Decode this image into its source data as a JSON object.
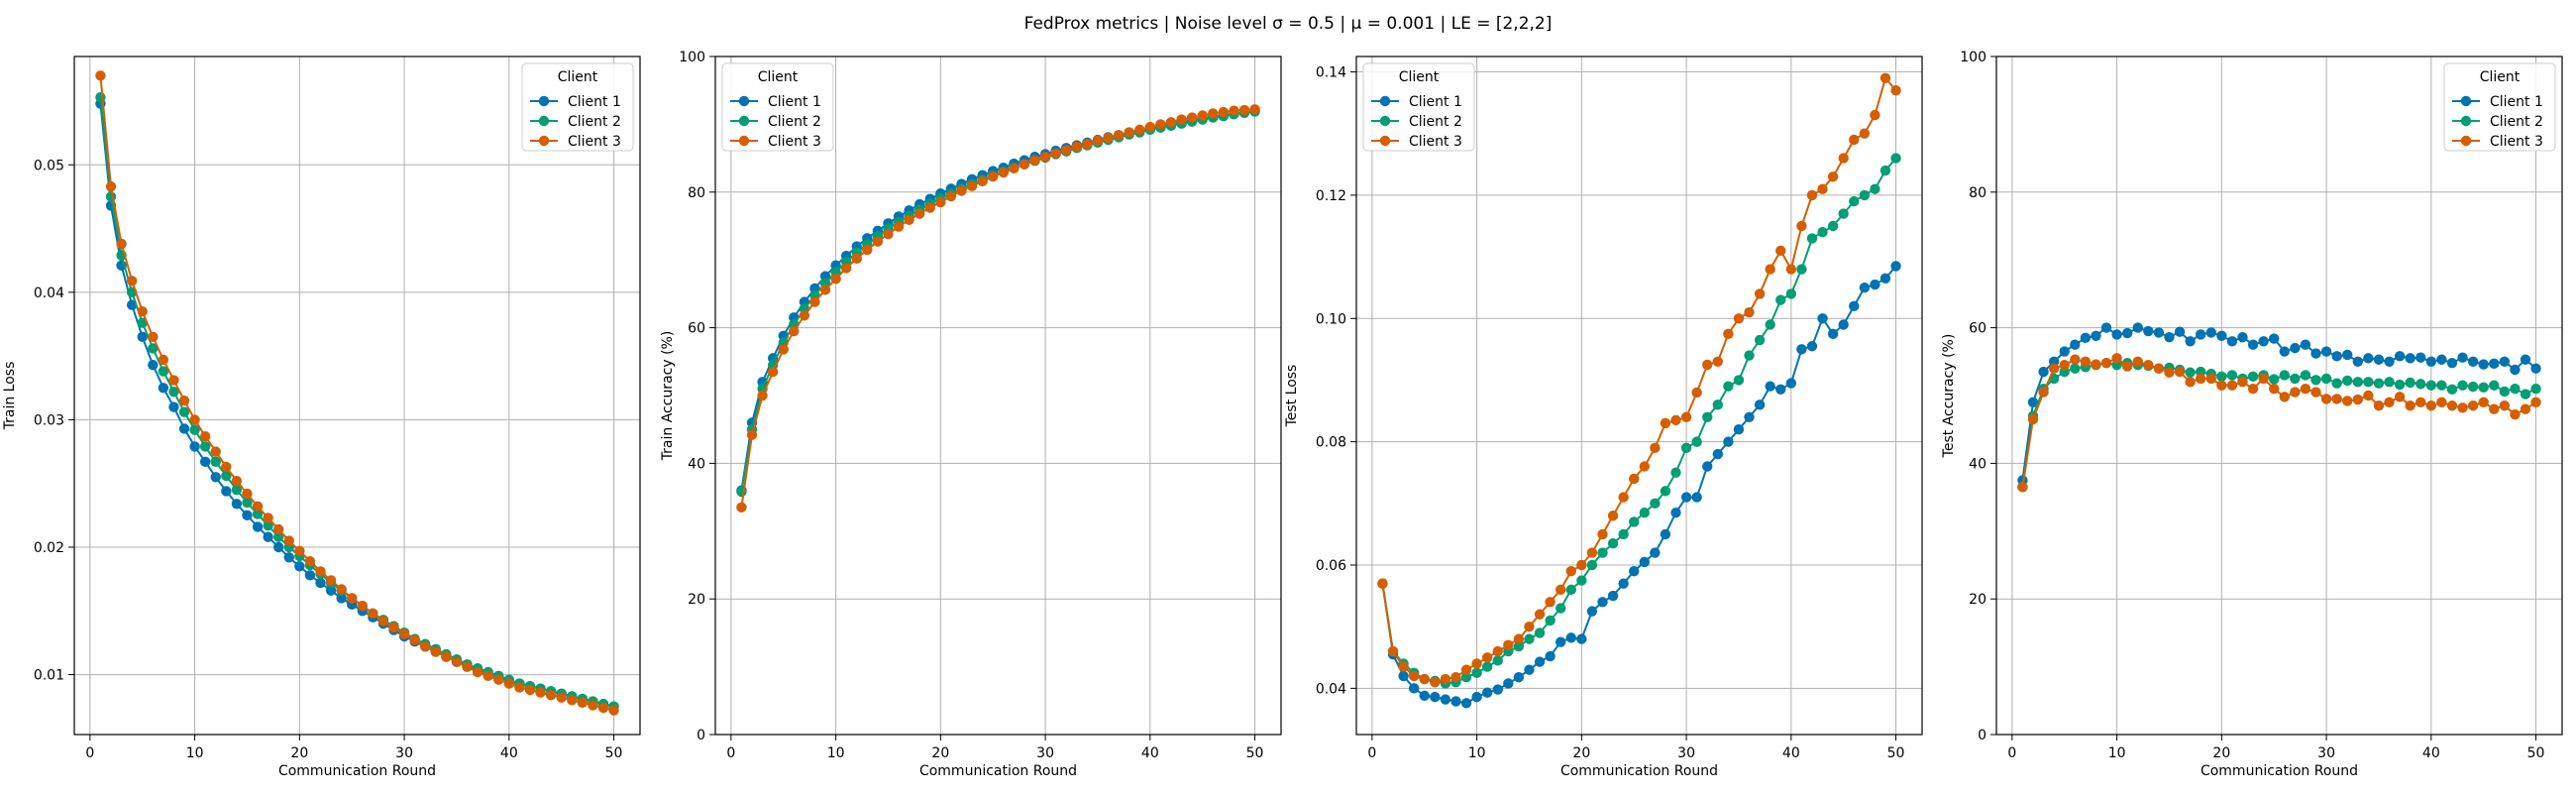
{
  "figure": {
    "suptitle": "FedProx metrics | Noise level σ = 0.5 | μ = 0.001 | LE = [2,2,2]"
  },
  "colors": {
    "Client 1": "#0173b2",
    "Client 2": "#029e73",
    "Client 3": "#d55e00"
  },
  "chart_data": [
    {
      "type": "line",
      "xlabel": "Communication Round",
      "ylabel": "Train Loss",
      "xlim": [
        -1.5,
        52.5
      ],
      "ylim": [
        0.0053,
        0.0585
      ],
      "xticks": [
        0,
        10,
        20,
        30,
        40,
        50
      ],
      "yticks": [
        0.01,
        0.02,
        0.03,
        0.04,
        0.05
      ],
      "ytick_labels": [
        "0.01",
        "0.02",
        "0.03",
        "0.04",
        "0.05"
      ],
      "grid": true,
      "legend": {
        "title": "Client",
        "position": "top-right"
      },
      "series": [
        {
          "name": "Client 1",
          "color": "#0173b2",
          "values": [
            0.0548,
            0.0468,
            0.0421,
            0.039,
            0.0365,
            0.0343,
            0.0325,
            0.031,
            0.0293,
            0.0279,
            0.0267,
            0.0255,
            0.0244,
            0.0234,
            0.0225,
            0.0216,
            0.0208,
            0.02,
            0.0192,
            0.0185,
            0.0178,
            0.0172,
            0.0166,
            0.016,
            0.0155,
            0.015,
            0.0145,
            0.014,
            0.0135,
            0.013,
            0.0126,
            0.0122,
            0.0118,
            0.0114,
            0.011,
            0.0107,
            0.0104,
            0.0101,
            0.0098,
            0.0095,
            0.0093,
            0.0091,
            0.0089,
            0.0087,
            0.0085,
            0.0083,
            0.0081,
            0.0079,
            0.0077,
            0.0075
          ]
        },
        {
          "name": "Client 2",
          "color": "#029e73",
          "values": [
            0.0553,
            0.0475,
            0.0429,
            0.04,
            0.0376,
            0.0356,
            0.0338,
            0.0322,
            0.0306,
            0.0292,
            0.0279,
            0.0267,
            0.0256,
            0.0245,
            0.0235,
            0.0226,
            0.0217,
            0.0208,
            0.02,
            0.0193,
            0.0186,
            0.0179,
            0.0172,
            0.0166,
            0.016,
            0.0154,
            0.0148,
            0.0143,
            0.0138,
            0.0133,
            0.0128,
            0.0124,
            0.012,
            0.0116,
            0.0112,
            0.0108,
            0.0105,
            0.0102,
            0.0099,
            0.0096,
            0.0093,
            0.0091,
            0.0089,
            0.0087,
            0.0085,
            0.0083,
            0.0081,
            0.0079,
            0.0077,
            0.0075
          ]
        },
        {
          "name": "Client 3",
          "color": "#d55e00",
          "values": [
            0.057,
            0.0483,
            0.0438,
            0.0409,
            0.0385,
            0.0365,
            0.0347,
            0.0331,
            0.0315,
            0.03,
            0.0287,
            0.0275,
            0.0263,
            0.0252,
            0.0242,
            0.0232,
            0.0223,
            0.0214,
            0.0205,
            0.0197,
            0.0189,
            0.0181,
            0.0174,
            0.0167,
            0.016,
            0.0154,
            0.0148,
            0.0142,
            0.0137,
            0.0132,
            0.0127,
            0.0122,
            0.0118,
            0.0114,
            0.011,
            0.0106,
            0.0102,
            0.0099,
            0.0096,
            0.0093,
            0.009,
            0.0088,
            0.0086,
            0.0084,
            0.0082,
            0.008,
            0.0078,
            0.0076,
            0.0074,
            0.0072
          ]
        }
      ]
    },
    {
      "type": "line",
      "xlabel": "Communication Round",
      "ylabel": "Train Accuracy (%)",
      "xlim": [
        -1.5,
        52.5
      ],
      "ylim": [
        0,
        100
      ],
      "xticks": [
        0,
        10,
        20,
        30,
        40,
        50
      ],
      "yticks": [
        0,
        20,
        40,
        60,
        80,
        100
      ],
      "ytick_labels": [
        "0",
        "20",
        "40",
        "60",
        "80",
        "100"
      ],
      "grid": true,
      "legend": {
        "title": "Client",
        "position": "top-left"
      },
      "series": [
        {
          "name": "Client 1",
          "color": "#0173b2",
          "values": [
            36.0,
            46.0,
            52.0,
            55.5,
            58.8,
            61.5,
            63.8,
            65.8,
            67.6,
            69.2,
            70.6,
            72.0,
            73.2,
            74.3,
            75.4,
            76.4,
            77.3,
            78.2,
            79.0,
            79.8,
            80.5,
            81.2,
            81.9,
            82.5,
            83.1,
            83.6,
            84.2,
            84.7,
            85.2,
            85.6,
            86.1,
            86.5,
            86.9,
            87.3,
            87.7,
            88.1,
            88.4,
            88.8,
            89.1,
            89.4,
            89.7,
            90.0,
            90.3,
            90.6,
            90.8,
            91.1,
            91.3,
            91.5,
            91.7,
            91.9
          ]
        },
        {
          "name": "Client 2",
          "color": "#029e73",
          "values": [
            35.8,
            45.0,
            51.0,
            54.5,
            57.8,
            60.5,
            62.8,
            64.8,
            66.6,
            68.2,
            69.7,
            71.1,
            72.3,
            73.5,
            74.6,
            75.6,
            76.5,
            77.4,
            78.3,
            79.1,
            79.8,
            80.5,
            81.2,
            81.8,
            82.4,
            83.0,
            83.6,
            84.1,
            84.6,
            85.1,
            85.6,
            86.0,
            86.5,
            86.9,
            87.3,
            87.7,
            88.1,
            88.5,
            88.8,
            89.2,
            89.5,
            89.8,
            90.1,
            90.4,
            90.7,
            91.0,
            91.2,
            91.5,
            91.7,
            91.9
          ]
        },
        {
          "name": "Client 3",
          "color": "#d55e00",
          "values": [
            33.5,
            44.2,
            50.0,
            53.5,
            56.8,
            59.5,
            61.8,
            63.8,
            65.6,
            67.2,
            68.8,
            70.2,
            71.5,
            72.7,
            73.8,
            74.9,
            75.9,
            76.8,
            77.7,
            78.5,
            79.4,
            80.2,
            80.9,
            81.6,
            82.3,
            82.9,
            83.5,
            84.1,
            84.7,
            85.2,
            85.7,
            86.2,
            86.7,
            87.1,
            87.6,
            88.0,
            88.4,
            88.8,
            89.2,
            89.6,
            90.0,
            90.3,
            90.7,
            91.0,
            91.3,
            91.6,
            91.8,
            92.0,
            92.1,
            92.2
          ]
        }
      ]
    },
    {
      "type": "line",
      "xlabel": "Communication Round",
      "ylabel": "Test Loss",
      "xlim": [
        -1.5,
        52.5
      ],
      "ylim": [
        0.0325,
        0.1425
      ],
      "xticks": [
        0,
        10,
        20,
        30,
        40,
        50
      ],
      "yticks": [
        0.04,
        0.06,
        0.08,
        0.1,
        0.12,
        0.14
      ],
      "ytick_labels": [
        "0.04",
        "0.06",
        "0.08",
        "0.10",
        "0.12",
        "0.14"
      ],
      "grid": true,
      "legend": {
        "title": "Client",
        "position": "top-left"
      },
      "series": [
        {
          "name": "Client 1",
          "color": "#0173b2",
          "values": [
            0.057,
            0.0455,
            0.042,
            0.04,
            0.0388,
            0.0386,
            0.0382,
            0.0379,
            0.0376,
            0.0386,
            0.0393,
            0.0398,
            0.0408,
            0.0418,
            0.043,
            0.0443,
            0.0452,
            0.0475,
            0.0482,
            0.048,
            0.0525,
            0.054,
            0.055,
            0.057,
            0.059,
            0.0605,
            0.062,
            0.065,
            0.0685,
            0.071,
            0.071,
            0.076,
            0.078,
            0.08,
            0.082,
            0.084,
            0.086,
            0.089,
            0.0885,
            0.0895,
            0.095,
            0.0955,
            0.1,
            0.0975,
            0.099,
            0.102,
            0.105,
            0.1055,
            0.1065,
            0.1085
          ]
        },
        {
          "name": "Client 2",
          "color": "#029e73",
          "values": [
            0.057,
            0.046,
            0.044,
            0.0425,
            0.0415,
            0.0412,
            0.0408,
            0.041,
            0.0418,
            0.0425,
            0.0435,
            0.0445,
            0.046,
            0.0468,
            0.048,
            0.049,
            0.051,
            0.053,
            0.056,
            0.0575,
            0.06,
            0.062,
            0.0635,
            0.065,
            0.067,
            0.0685,
            0.07,
            0.072,
            0.075,
            0.079,
            0.08,
            0.084,
            0.086,
            0.089,
            0.09,
            0.094,
            0.0965,
            0.099,
            0.103,
            0.104,
            0.108,
            0.113,
            0.114,
            0.115,
            0.117,
            0.119,
            0.12,
            0.121,
            0.124,
            0.126
          ]
        },
        {
          "name": "Client 3",
          "color": "#d55e00",
          "values": [
            0.057,
            0.046,
            0.0435,
            0.042,
            0.0415,
            0.041,
            0.0415,
            0.0418,
            0.043,
            0.044,
            0.045,
            0.046,
            0.047,
            0.048,
            0.05,
            0.052,
            0.054,
            0.056,
            0.059,
            0.06,
            0.062,
            0.065,
            0.068,
            0.071,
            0.074,
            0.076,
            0.079,
            0.083,
            0.0835,
            0.084,
            0.088,
            0.0925,
            0.093,
            0.0975,
            0.1,
            0.101,
            0.104,
            0.108,
            0.111,
            0.108,
            0.115,
            0.12,
            0.121,
            0.123,
            0.126,
            0.129,
            0.13,
            0.133,
            0.139,
            0.137
          ]
        }
      ]
    },
    {
      "type": "line",
      "xlabel": "Communication Round",
      "ylabel": "Test Accuracy (%)",
      "xlim": [
        -1.5,
        52.5
      ],
      "ylim": [
        0,
        100
      ],
      "xticks": [
        0,
        10,
        20,
        30,
        40,
        50
      ],
      "yticks": [
        0,
        20,
        40,
        60,
        80,
        100
      ],
      "ytick_labels": [
        "0",
        "20",
        "40",
        "60",
        "80",
        "100"
      ],
      "grid": true,
      "legend": {
        "title": "Client",
        "position": "top-right"
      },
      "series": [
        {
          "name": "Client 1",
          "color": "#0173b2",
          "values": [
            37.5,
            49.0,
            53.5,
            55.0,
            56.5,
            57.5,
            58.5,
            58.8,
            60.0,
            59.0,
            59.2,
            60.0,
            59.5,
            59.3,
            58.6,
            59.4,
            58.0,
            59.0,
            59.3,
            58.8,
            58.0,
            58.6,
            57.5,
            58.0,
            58.4,
            56.5,
            57.0,
            57.5,
            56.2,
            56.5,
            55.8,
            56.0,
            55.0,
            55.5,
            55.3,
            55.0,
            55.8,
            55.5,
            55.6,
            55.0,
            55.3,
            54.8,
            55.6,
            55.0,
            54.6,
            54.7,
            55.0,
            53.8,
            55.3,
            54.0
          ]
        },
        {
          "name": "Client 2",
          "color": "#029e73",
          "values": [
            36.5,
            47.0,
            51.0,
            52.5,
            53.5,
            54.0,
            54.2,
            54.5,
            54.8,
            54.5,
            54.8,
            54.5,
            54.4,
            54.0,
            54.1,
            53.8,
            53.4,
            53.5,
            53.2,
            52.8,
            53.0,
            52.5,
            52.8,
            53.0,
            52.4,
            53.0,
            52.5,
            53.0,
            52.3,
            52.5,
            51.8,
            52.2,
            52.0,
            52.0,
            51.8,
            52.0,
            51.6,
            51.9,
            51.7,
            51.5,
            51.5,
            50.9,
            51.5,
            51.3,
            51.2,
            51.5,
            50.6,
            51.0,
            50.2,
            51.0
          ]
        },
        {
          "name": "Client 3",
          "color": "#d55e00",
          "values": [
            36.5,
            46.5,
            50.5,
            54.0,
            54.5,
            55.3,
            55.0,
            54.6,
            54.8,
            55.5,
            54.3,
            55.0,
            54.5,
            54.0,
            53.4,
            53.5,
            52.0,
            52.5,
            52.5,
            51.5,
            51.5,
            52.0,
            51.0,
            52.5,
            51.0,
            49.8,
            50.5,
            51.0,
            50.5,
            49.5,
            49.5,
            49.2,
            49.4,
            50.0,
            48.5,
            49.0,
            49.8,
            48.5,
            49.0,
            48.5,
            49.0,
            48.5,
            48.2,
            48.5,
            49.0,
            48.0,
            48.5,
            47.2,
            48.0,
            49.0
          ]
        }
      ]
    }
  ]
}
